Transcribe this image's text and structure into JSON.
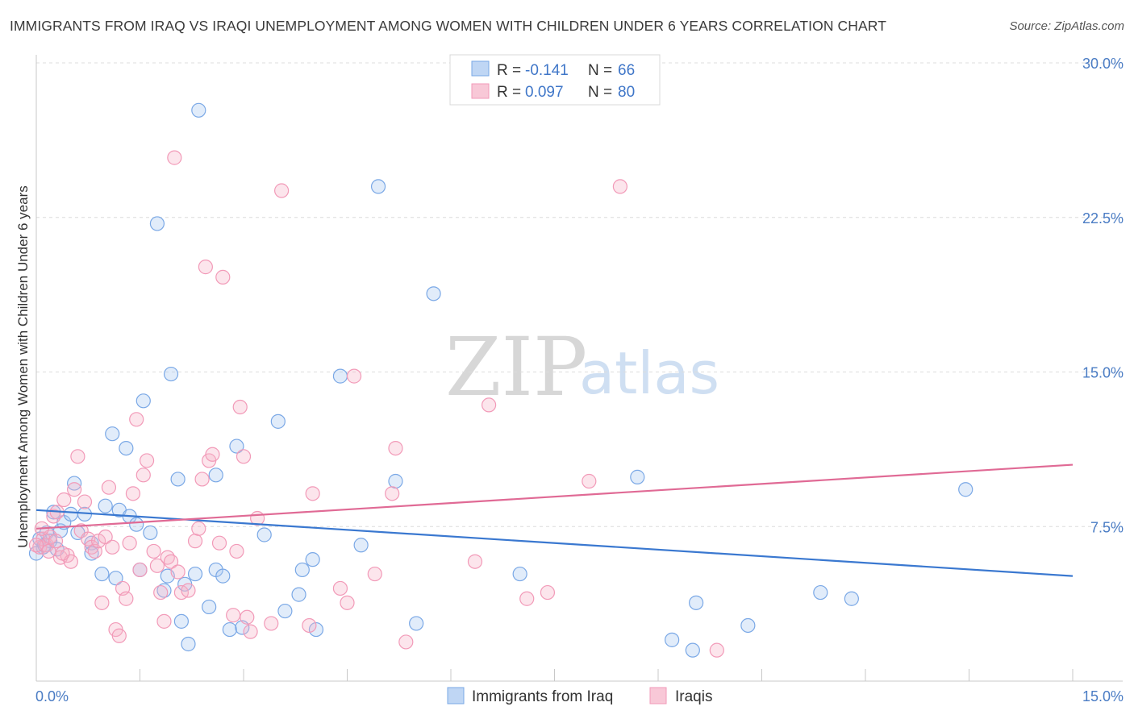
{
  "header": {
    "title": "IMMIGRANTS FROM IRAQ VS IRAQI UNEMPLOYMENT AMONG WOMEN WITH CHILDREN UNDER 6 YEARS CORRELATION CHART",
    "source": "Source: ZipAtlas.com"
  },
  "watermark": {
    "zip": "ZIP",
    "atlas": "atlas"
  },
  "legend": {
    "rows": [
      {
        "r_label": "R =",
        "r_value": "-0.141",
        "n_label": "N =",
        "n_value": "66",
        "color": "#a9c8f0"
      },
      {
        "r_label": "R =",
        "r_value": "0.097",
        "n_label": "N =",
        "n_value": "80",
        "color": "#f5b5c9"
      }
    ]
  },
  "bottom_legend": {
    "items": [
      {
        "label": "Immigrants from Iraq",
        "color": "#a9c8f0"
      },
      {
        "label": "Iraqis",
        "color": "#f5b5c9"
      }
    ]
  },
  "chart_data": {
    "type": "scatter",
    "ylabel": "Unemployment Among Women with Children Under 6 years",
    "xlim": [
      0,
      15
    ],
    "ylim": [
      0,
      30
    ],
    "x_tick_labels": [
      "0.0%",
      "15.0%"
    ],
    "y_tick_labels": [
      "7.5%",
      "15.0%",
      "22.5%",
      "30.0%"
    ],
    "y_ticks": [
      7.5,
      15,
      22.5,
      30
    ],
    "grid": "horizontal dashed",
    "colors": {
      "iraq": "#7aa8e6",
      "iraq_line": "#3a78d0",
      "iraqis": "#f29ab8",
      "iraqis_line": "#e06a95"
    },
    "series": [
      {
        "name": "Immigrants from Iraq",
        "trend": {
          "x": [
            0,
            15
          ],
          "y": [
            8.3,
            5.1
          ]
        },
        "points": [
          [
            0.1,
            6.5
          ],
          [
            0.15,
            7.2
          ],
          [
            0.2,
            6.8
          ],
          [
            0.25,
            8.2
          ],
          [
            0.3,
            6.4
          ],
          [
            0.35,
            7.3
          ],
          [
            0.4,
            7.7
          ],
          [
            0.5,
            8.1
          ],
          [
            0.55,
            9.6
          ],
          [
            0.6,
            7.2
          ],
          [
            0.7,
            8.1
          ],
          [
            0.8,
            6.7
          ],
          [
            0.8,
            6.2
          ],
          [
            0.95,
            5.2
          ],
          [
            1.0,
            8.5
          ],
          [
            1.1,
            12.0
          ],
          [
            1.15,
            5.0
          ],
          [
            1.2,
            8.3
          ],
          [
            1.3,
            11.3
          ],
          [
            1.35,
            8.0
          ],
          [
            1.45,
            7.6
          ],
          [
            1.5,
            5.4
          ],
          [
            1.55,
            13.6
          ],
          [
            1.65,
            7.2
          ],
          [
            1.75,
            22.2
          ],
          [
            1.85,
            4.4
          ],
          [
            1.9,
            5.1
          ],
          [
            1.95,
            14.9
          ],
          [
            2.05,
            9.8
          ],
          [
            2.1,
            2.9
          ],
          [
            2.15,
            4.7
          ],
          [
            2.2,
            1.8
          ],
          [
            2.3,
            5.2
          ],
          [
            2.35,
            27.7
          ],
          [
            2.5,
            3.6
          ],
          [
            2.6,
            10.0
          ],
          [
            2.6,
            5.4
          ],
          [
            2.7,
            5.1
          ],
          [
            2.8,
            2.5
          ],
          [
            2.9,
            11.4
          ],
          [
            2.98,
            2.6
          ],
          [
            3.3,
            7.1
          ],
          [
            3.5,
            12.6
          ],
          [
            3.6,
            3.4
          ],
          [
            3.8,
            4.2
          ],
          [
            3.85,
            5.4
          ],
          [
            4.0,
            5.9
          ],
          [
            4.05,
            2.5
          ],
          [
            4.4,
            14.8
          ],
          [
            4.7,
            6.6
          ],
          [
            4.95,
            24.0
          ],
          [
            5.2,
            9.7
          ],
          [
            5.5,
            2.8
          ],
          [
            5.75,
            18.8
          ],
          [
            7.0,
            5.2
          ],
          [
            8.7,
            9.9
          ],
          [
            9.2,
            2.0
          ],
          [
            9.5,
            1.5
          ],
          [
            9.55,
            3.8
          ],
          [
            10.3,
            2.7
          ],
          [
            11.35,
            4.3
          ],
          [
            11.8,
            4.0
          ],
          [
            13.45,
            9.3
          ],
          [
            0.05,
            6.9
          ],
          [
            0.0,
            6.2
          ],
          [
            0.12,
            6.6
          ]
        ]
      },
      {
        "name": "Iraqis",
        "trend": {
          "x": [
            0,
            15
          ],
          "y": [
            7.4,
            10.5
          ]
        },
        "points": [
          [
            0.05,
            6.5
          ],
          [
            0.1,
            6.9
          ],
          [
            0.15,
            6.6
          ],
          [
            0.2,
            7.0
          ],
          [
            0.25,
            8.0
          ],
          [
            0.3,
            8.2
          ],
          [
            0.35,
            6.0
          ],
          [
            0.4,
            8.8
          ],
          [
            0.45,
            6.1
          ],
          [
            0.5,
            5.8
          ],
          [
            0.55,
            9.3
          ],
          [
            0.6,
            10.9
          ],
          [
            0.65,
            7.3
          ],
          [
            0.7,
            8.7
          ],
          [
            0.75,
            6.9
          ],
          [
            0.8,
            6.5
          ],
          [
            0.85,
            6.3
          ],
          [
            0.9,
            6.8
          ],
          [
            0.95,
            3.8
          ],
          [
            1.0,
            7.0
          ],
          [
            1.05,
            9.4
          ],
          [
            1.1,
            6.5
          ],
          [
            1.15,
            2.5
          ],
          [
            1.2,
            2.2
          ],
          [
            1.25,
            4.5
          ],
          [
            1.3,
            4.0
          ],
          [
            1.35,
            6.7
          ],
          [
            1.4,
            9.1
          ],
          [
            1.45,
            12.7
          ],
          [
            1.5,
            5.4
          ],
          [
            1.55,
            10.0
          ],
          [
            1.6,
            10.7
          ],
          [
            1.7,
            6.3
          ],
          [
            1.75,
            5.6
          ],
          [
            1.8,
            4.3
          ],
          [
            1.85,
            2.9
          ],
          [
            1.9,
            6.0
          ],
          [
            1.95,
            5.8
          ],
          [
            2.0,
            25.4
          ],
          [
            2.05,
            5.3
          ],
          [
            2.1,
            4.3
          ],
          [
            2.2,
            4.4
          ],
          [
            2.3,
            6.8
          ],
          [
            2.35,
            7.4
          ],
          [
            2.4,
            9.8
          ],
          [
            2.45,
            20.1
          ],
          [
            2.5,
            10.7
          ],
          [
            2.55,
            11.0
          ],
          [
            2.65,
            6.7
          ],
          [
            2.7,
            19.6
          ],
          [
            2.85,
            3.2
          ],
          [
            2.9,
            6.3
          ],
          [
            2.95,
            13.3
          ],
          [
            3.0,
            10.9
          ],
          [
            3.05,
            3.1
          ],
          [
            3.1,
            2.4
          ],
          [
            3.2,
            7.9
          ],
          [
            3.4,
            2.8
          ],
          [
            3.55,
            23.8
          ],
          [
            3.95,
            2.7
          ],
          [
            4.0,
            9.1
          ],
          [
            4.4,
            4.5
          ],
          [
            4.5,
            3.8
          ],
          [
            4.6,
            14.8
          ],
          [
            4.9,
            5.2
          ],
          [
            5.15,
            9.1
          ],
          [
            5.2,
            11.3
          ],
          [
            5.35,
            1.9
          ],
          [
            6.35,
            5.8
          ],
          [
            6.55,
            13.4
          ],
          [
            7.1,
            4.0
          ],
          [
            7.4,
            4.3
          ],
          [
            8.0,
            9.7
          ],
          [
            8.45,
            24.0
          ],
          [
            9.85,
            1.5
          ],
          [
            0.0,
            6.6
          ],
          [
            0.08,
            7.4
          ],
          [
            0.18,
            6.3
          ],
          [
            0.28,
            6.8
          ],
          [
            0.38,
            6.2
          ]
        ]
      }
    ]
  }
}
